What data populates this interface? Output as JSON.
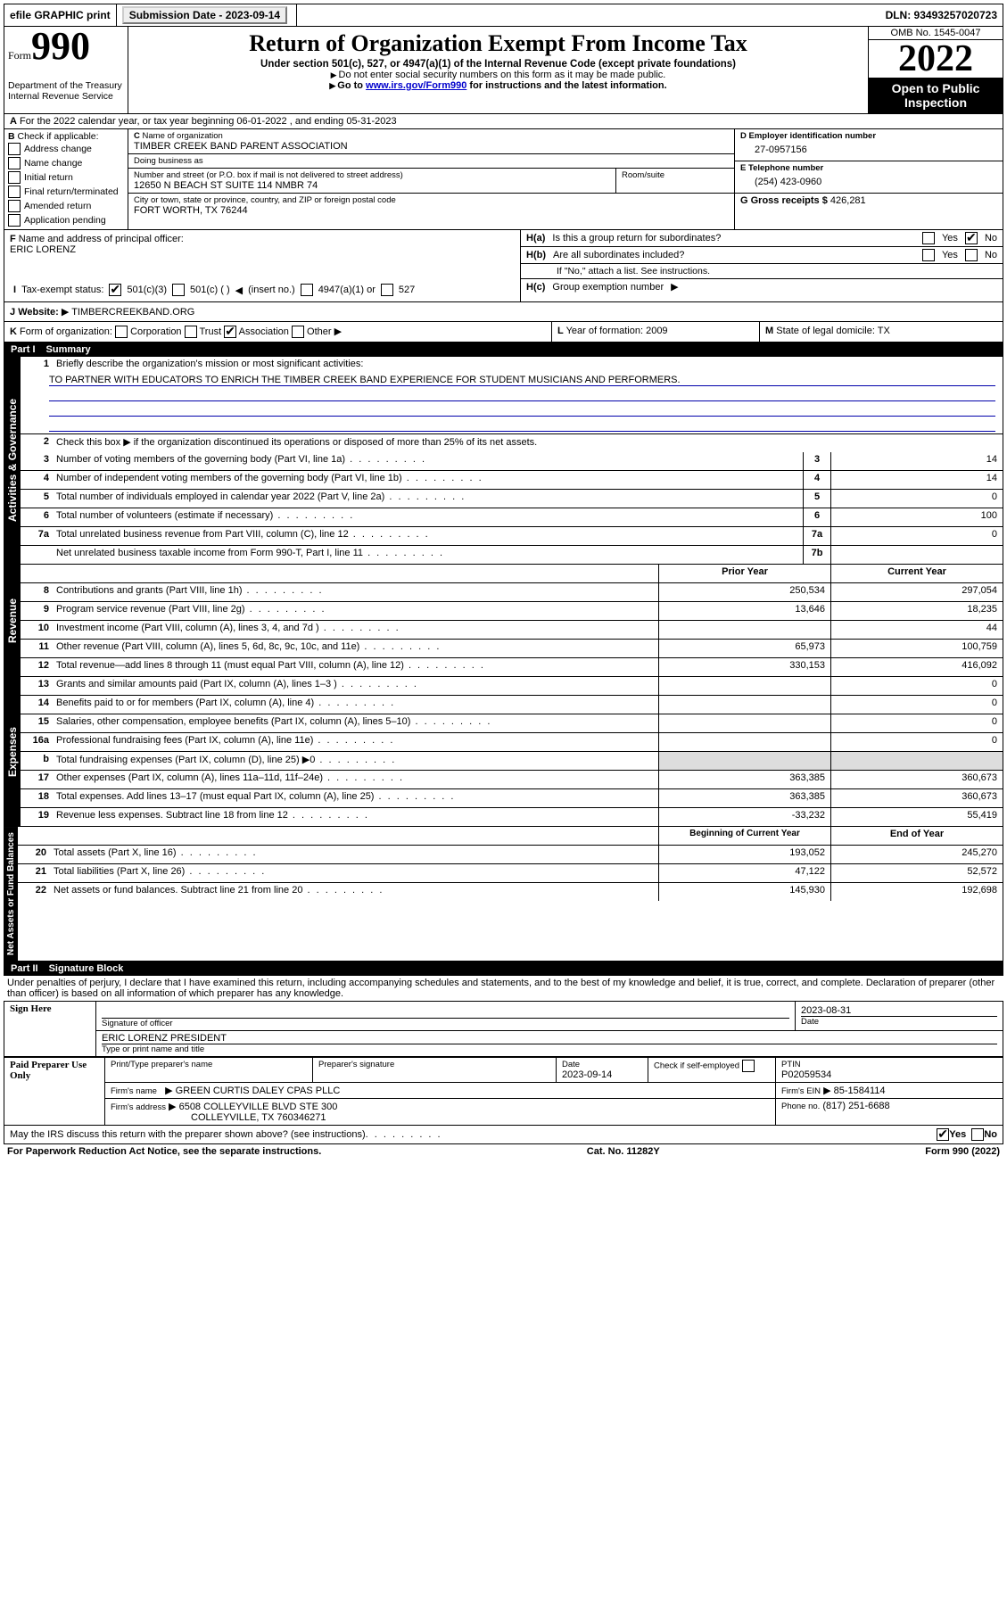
{
  "topbar": {
    "efile": "efile GRAPHIC print",
    "sub_label": "Submission Date - 2023-09-14",
    "dln": "DLN: 93493257020723"
  },
  "header": {
    "form_prefix": "Form",
    "form_num": "990",
    "dept": "Department of the Treasury",
    "irs": "Internal Revenue Service",
    "title": "Return of Organization Exempt From Income Tax",
    "sub": "Under section 501(c), 527, or 4947(a)(1) of the Internal Revenue Code (except private foundations)",
    "note1": "Do not enter social security numbers on this form as it may be made public.",
    "note2_pre": "Go to ",
    "note2_link": "www.irs.gov/Form990",
    "note2_post": " for instructions and the latest information.",
    "omb": "OMB No. 1545-0047",
    "year": "2022",
    "opi": "Open to Public Inspection"
  },
  "line_a": "For the 2022 calendar year, or tax year beginning 06-01-2022    , and ending 05-31-2023",
  "b": {
    "label": "Check if applicable:",
    "opts": [
      "Address change",
      "Name change",
      "Initial return",
      "Final return/terminated",
      "Amended return",
      "Application pending"
    ]
  },
  "c": {
    "name_lbl": "Name of organization",
    "name": "TIMBER CREEK BAND PARENT ASSOCIATION",
    "dba_lbl": "Doing business as",
    "dba": "",
    "street_lbl": "Number and street (or P.O. box if mail is not delivered to street address)",
    "street": "12650 N BEACH ST SUITE 114 NMBR 74",
    "room_lbl": "Room/suite",
    "city_lbl": "City or town, state or province, country, and ZIP or foreign postal code",
    "city": "FORT WORTH, TX  76244"
  },
  "d": {
    "lbl": "Employer identification number",
    "val": "27-0957156"
  },
  "e": {
    "lbl": "E Telephone number",
    "val": "(254) 423-0960"
  },
  "g": {
    "lbl": "Gross receipts $",
    "val": "426,281"
  },
  "f": {
    "lbl": "Name and address of principal officer:",
    "val": "ERIC LORENZ"
  },
  "h": {
    "a_lbl": "Is this a group return for subordinates?",
    "b_lbl": "Are all subordinates included?",
    "b_note": "If \"No,\" attach a list. See instructions.",
    "c_lbl": "Group exemption number",
    "yes": "Yes",
    "no": "No"
  },
  "i": {
    "lbl": "Tax-exempt status:",
    "o1": "501(c)(3)",
    "o2": "501(c) (  )",
    "o2b": "(insert no.)",
    "o3": "4947(a)(1) or",
    "o4": "527"
  },
  "j": {
    "lbl": "Website:",
    "val": "TIMBERCREEKBAND.ORG"
  },
  "k": {
    "lbl": "Form of organization:",
    "o1": "Corporation",
    "o2": "Trust",
    "o3": "Association",
    "o4": "Other"
  },
  "l": {
    "lbl": "Year of formation:",
    "val": "2009"
  },
  "m": {
    "lbl": "State of legal domicile:",
    "val": "TX"
  },
  "part1": {
    "label": "Part I",
    "title": "Summary"
  },
  "summary": {
    "l1_lbl": "Briefly describe the organization's mission or most significant activities:",
    "l1_val": "TO PARTNER WITH EDUCATORS TO ENRICH THE TIMBER CREEK BAND EXPERIENCE FOR STUDENT MUSICIANS AND PERFORMERS.",
    "l2": "Check this box ▶      if the organization discontinued its operations or disposed of more than 25% of its net assets.",
    "rows_gov": [
      {
        "n": "3",
        "t": "Number of voting members of the governing body (Part VI, line 1a)",
        "b": "3",
        "v": "14"
      },
      {
        "n": "4",
        "t": "Number of independent voting members of the governing body (Part VI, line 1b)",
        "b": "4",
        "v": "14"
      },
      {
        "n": "5",
        "t": "Total number of individuals employed in calendar year 2022 (Part V, line 2a)",
        "b": "5",
        "v": "0"
      },
      {
        "n": "6",
        "t": "Total number of volunteers (estimate if necessary)",
        "b": "6",
        "v": "100"
      },
      {
        "n": "7a",
        "t": "Total unrelated business revenue from Part VIII, column (C), line 12",
        "b": "7a",
        "v": "0"
      },
      {
        "n": "",
        "t": "Net unrelated business taxable income from Form 990-T, Part I, line 11",
        "b": "7b",
        "v": ""
      }
    ],
    "col_prior": "Prior Year",
    "col_curr": "Current Year",
    "rows_rev": [
      {
        "n": "8",
        "t": "Contributions and grants (Part VIII, line 1h)",
        "p": "250,534",
        "c": "297,054"
      },
      {
        "n": "9",
        "t": "Program service revenue (Part VIII, line 2g)",
        "p": "13,646",
        "c": "18,235"
      },
      {
        "n": "10",
        "t": "Investment income (Part VIII, column (A), lines 3, 4, and 7d )",
        "p": "",
        "c": "44"
      },
      {
        "n": "11",
        "t": "Other revenue (Part VIII, column (A), lines 5, 6d, 8c, 9c, 10c, and 11e)",
        "p": "65,973",
        "c": "100,759"
      },
      {
        "n": "12",
        "t": "Total revenue—add lines 8 through 11 (must equal Part VIII, column (A), line 12)",
        "p": "330,153",
        "c": "416,092"
      }
    ],
    "rows_exp": [
      {
        "n": "13",
        "t": "Grants and similar amounts paid (Part IX, column (A), lines 1–3 )",
        "p": "",
        "c": "0"
      },
      {
        "n": "14",
        "t": "Benefits paid to or for members (Part IX, column (A), line 4)",
        "p": "",
        "c": "0"
      },
      {
        "n": "15",
        "t": "Salaries, other compensation, employee benefits (Part IX, column (A), lines 5–10)",
        "p": "",
        "c": "0"
      },
      {
        "n": "16a",
        "t": "Professional fundraising fees (Part IX, column (A), line 11e)",
        "p": "",
        "c": "0"
      },
      {
        "n": "b",
        "t": "Total fundraising expenses (Part IX, column (D), line 25) ▶0",
        "p": "shade",
        "c": "shade"
      },
      {
        "n": "17",
        "t": "Other expenses (Part IX, column (A), lines 11a–11d, 11f–24e)",
        "p": "363,385",
        "c": "360,673"
      },
      {
        "n": "18",
        "t": "Total expenses. Add lines 13–17 (must equal Part IX, column (A), line 25)",
        "p": "363,385",
        "c": "360,673"
      },
      {
        "n": "19",
        "t": "Revenue less expenses. Subtract line 18 from line 12",
        "p": "-33,232",
        "c": "55,419"
      }
    ],
    "col_beg": "Beginning of Current Year",
    "col_end": "End of Year",
    "rows_net": [
      {
        "n": "20",
        "t": "Total assets (Part X, line 16)",
        "p": "193,052",
        "c": "245,270"
      },
      {
        "n": "21",
        "t": "Total liabilities (Part X, line 26)",
        "p": "47,122",
        "c": "52,572"
      },
      {
        "n": "22",
        "t": "Net assets or fund balances. Subtract line 21 from line 20",
        "p": "145,930",
        "c": "192,698"
      }
    ]
  },
  "vtabs": {
    "gov": "Activities & Governance",
    "rev": "Revenue",
    "exp": "Expenses",
    "net": "Net Assets or Fund Balances"
  },
  "part2": {
    "label": "Part II",
    "title": "Signature Block"
  },
  "sig": {
    "decl": "Under penalties of perjury, I declare that I have examined this return, including accompanying schedules and statements, and to the best of my knowledge and belief, it is true, correct, and complete. Declaration of preparer (other than officer) is based on all information of which preparer has any knowledge.",
    "sign_here": "Sign Here",
    "sig_officer": "Signature of officer",
    "date_lbl": "Date",
    "date": "2023-08-31",
    "name_title": "ERIC LORENZ  PRESIDENT",
    "type_lbl": "Type or print name and title",
    "paid": "Paid Preparer Use Only",
    "p_name_lbl": "Print/Type preparer's name",
    "p_sig_lbl": "Preparer's signature",
    "p_date_lbl": "Date",
    "p_date": "2023-09-14",
    "p_check": "Check        if self-employed",
    "ptin_lbl": "PTIN",
    "ptin": "P02059534",
    "firm_name_lbl": "Firm's name",
    "firm_name": "GREEN CURTIS DALEY CPAS PLLC",
    "firm_ein_lbl": "Firm's EIN",
    "firm_ein": "85-1584114",
    "firm_addr_lbl": "Firm's address",
    "firm_addr1": "6508 COLLEYVILLE BLVD STE 300",
    "firm_addr2": "COLLEYVILLE, TX  760346271",
    "phone_lbl": "Phone no.",
    "phone": "(817) 251-6688",
    "may_irs": "May the IRS discuss this return with the preparer shown above? (see instructions)"
  },
  "footer": {
    "l": "For Paperwork Reduction Act Notice, see the separate instructions.",
    "m": "Cat. No. 11282Y",
    "r": "Form 990 (2022)"
  },
  "letters": {
    "A": "A",
    "B": "B",
    "C": "C",
    "D": "D",
    "F": "F",
    "G": "G",
    "H_a": "H(a)",
    "H_b": "H(b)",
    "H_c": "H(c)",
    "I": "I",
    "J": "J",
    "K": "K",
    "L": "L",
    "M": "M"
  }
}
